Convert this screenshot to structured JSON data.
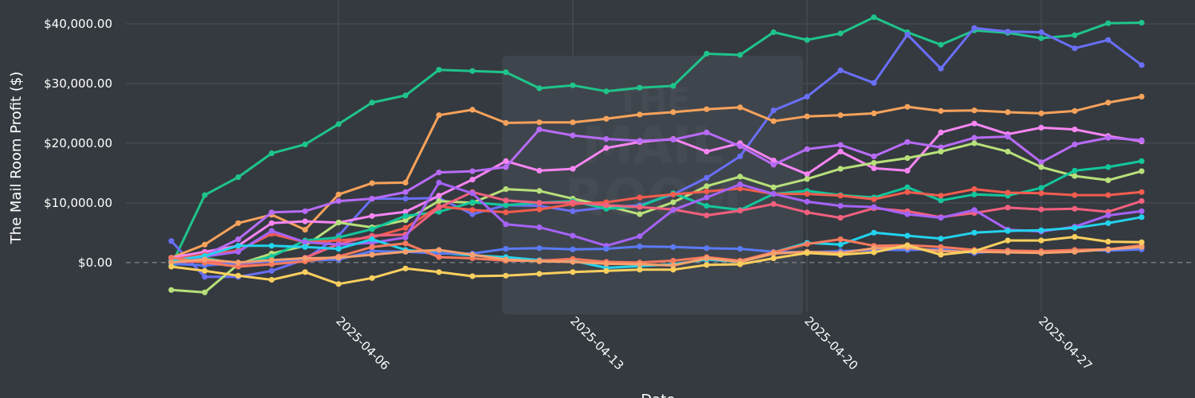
{
  "chart_data": {
    "type": "line",
    "ylabel": "The Mail Room Profit ($)",
    "xlabel": "Date",
    "x_start": "2025-04-01",
    "x_step_days": 1,
    "x_ticks": [
      "2025-04-06",
      "2025-04-13",
      "2025-04-20",
      "2025-04-27"
    ],
    "y_ticks": [
      0,
      10000,
      20000,
      30000,
      40000
    ],
    "y_tick_labels": [
      "$0.00",
      "$10,000.00",
      "$20,000.00",
      "$30,000.00",
      "$40,000.00"
    ],
    "ylim": [
      -8300,
      44000
    ],
    "grid": true,
    "zero_line_dashed": true,
    "watermark_text": [
      "THE",
      "MAIL",
      "ROOM"
    ],
    "series": [
      {
        "color": "#1fc48a",
        "values": [
          -500,
          11300,
          14300,
          18300,
          19800,
          23200,
          26800,
          28000,
          32300,
          32100,
          31900,
          29200,
          29700,
          28700,
          29300,
          29600,
          35000,
          34800,
          38600,
          37300,
          38400,
          41100,
          38600,
          36500,
          38900,
          38500,
          37600,
          38100,
          40100,
          40200
        ]
      },
      {
        "color": "#6a6ff7",
        "values": [
          3600,
          -2400,
          -2400,
          -1400,
          500,
          4500,
          10700,
          10700,
          10800,
          8100,
          9600,
          9500,
          8600,
          9200,
          9600,
          11400,
          14200,
          17800,
          25500,
          27800,
          32200,
          30100,
          38200,
          32500,
          39300,
          38700,
          38600,
          35900,
          37300,
          33100
        ]
      },
      {
        "color": "#f7a25b",
        "values": [
          800,
          3000,
          6600,
          8000,
          5500,
          11400,
          13300,
          13400,
          24700,
          25600,
          23400,
          23500,
          23500,
          24100,
          24800,
          25200,
          25700,
          26000,
          23700,
          24500,
          24700,
          25000,
          26100,
          25400,
          25500,
          25200,
          25000,
          25400,
          26800,
          27800
        ]
      },
      {
        "color": "#f785f2",
        "values": [
          800,
          1800,
          2800,
          6600,
          6900,
          6700,
          7800,
          8500,
          11200,
          13900,
          17000,
          15400,
          15700,
          19200,
          20200,
          20700,
          18600,
          20000,
          17100,
          14800,
          18600,
          15800,
          15400,
          21800,
          23300,
          21500,
          22600,
          22300,
          21200,
          20300
        ]
      },
      {
        "color": "#b86bf7",
        "values": [
          500,
          1200,
          3900,
          8400,
          8600,
          10300,
          10700,
          11800,
          15100,
          15300,
          16000,
          22300,
          21300,
          20700,
          20400,
          20600,
          21800,
          19500,
          16400,
          19000,
          19700,
          17800,
          20200,
          19300,
          20900,
          21100,
          16800,
          19800,
          20900,
          20500
        ]
      },
      {
        "color": "#b8e07a",
        "values": [
          -4600,
          -5000,
          -300,
          1500,
          2800,
          6700,
          5900,
          7100,
          10300,
          10000,
          12300,
          12000,
          10700,
          9500,
          8100,
          10100,
          12800,
          14400,
          12600,
          14000,
          15700,
          16700,
          17500,
          18600,
          20000,
          18600,
          16000,
          14500,
          13800,
          15300
        ]
      },
      {
        "color": "#12c79c",
        "values": [
          -500,
          800,
          -300,
          1000,
          3700,
          4200,
          5600,
          7800,
          8500,
          10100,
          9600,
          10000,
          10300,
          9000,
          9400,
          11600,
          9500,
          8800,
          11500,
          12000,
          11300,
          10900,
          12600,
          10400,
          11400,
          11200,
          12500,
          15400,
          16000,
          17000
        ]
      },
      {
        "color": "#f25c4e",
        "values": [
          500,
          1300,
          2000,
          4800,
          3400,
          3700,
          4200,
          5800,
          9400,
          8800,
          8400,
          8900,
          9800,
          10100,
          10900,
          11400,
          11900,
          12400,
          11500,
          11500,
          11200,
          10600,
          11800,
          11200,
          12300,
          11700,
          11600,
          11300,
          11300,
          11800
        ]
      },
      {
        "color": "#f2607e",
        "values": [
          0,
          200,
          -300,
          200,
          800,
          3100,
          4500,
          4700,
          9200,
          11800,
          10400,
          10000,
          10100,
          9600,
          9300,
          8900,
          7900,
          8700,
          9800,
          8400,
          7500,
          9100,
          8600,
          7600,
          8300,
          9200,
          8900,
          9000,
          8500,
          10300
        ]
      },
      {
        "color": "#a663f7",
        "values": [
          300,
          1000,
          1800,
          5300,
          3400,
          3000,
          3300,
          4200,
          13400,
          11600,
          6400,
          5900,
          4500,
          2800,
          4400,
          8800,
          10900,
          13100,
          11500,
          10200,
          9500,
          9300,
          8100,
          7500,
          8800,
          5500,
          5200,
          6000,
          7900,
          8600
        ]
      },
      {
        "color": "#22d3ee",
        "values": [
          300,
          1100,
          2800,
          2800,
          2600,
          2300,
          3900,
          2100,
          1600,
          1200,
          900,
          400,
          300,
          -900,
          -600,
          -300,
          500,
          100,
          1700,
          3300,
          3000,
          5000,
          4500,
          4000,
          5000,
          5300,
          5400,
          5800,
          6600,
          7600
        ]
      },
      {
        "color": "#5b7af5",
        "values": [
          -200,
          -500,
          -100,
          200,
          300,
          500,
          1900,
          1800,
          1500,
          1500,
          2300,
          2400,
          2200,
          2300,
          2700,
          2600,
          2400,
          2300,
          1800,
          1700,
          1900,
          2100,
          2100,
          2200,
          1600,
          2000,
          1700,
          2100,
          2000,
          2200
        ]
      },
      {
        "color": "#f77a5e",
        "values": [
          800,
          0,
          -700,
          -300,
          200,
          1000,
          2600,
          3200,
          900,
          700,
          300,
          300,
          600,
          100,
          0,
          300,
          900,
          300,
          1700,
          3100,
          3900,
          2800,
          2900,
          2600,
          2100,
          2000,
          1900,
          2100,
          2200,
          2900
        ]
      },
      {
        "color": "#f5a06e",
        "values": [
          0,
          500,
          0,
          400,
          700,
          800,
          1300,
          1800,
          2100,
          1300,
          500,
          200,
          100,
          -200,
          -300,
          -500,
          700,
          100,
          1500,
          1800,
          1600,
          2400,
          2500,
          1900,
          1800,
          1700,
          1600,
          1800,
          2200,
          2600
        ]
      },
      {
        "color": "#fbcf5e",
        "values": [
          -700,
          -1400,
          -2200,
          -2900,
          -1600,
          -3600,
          -2600,
          -1000,
          -1600,
          -2300,
          -2200,
          -1900,
          -1600,
          -1400,
          -1200,
          -1200,
          -400,
          -300,
          700,
          1600,
          1300,
          1700,
          2900,
          1300,
          1900,
          3700,
          3700,
          4300,
          3500,
          3400
        ]
      }
    ]
  }
}
